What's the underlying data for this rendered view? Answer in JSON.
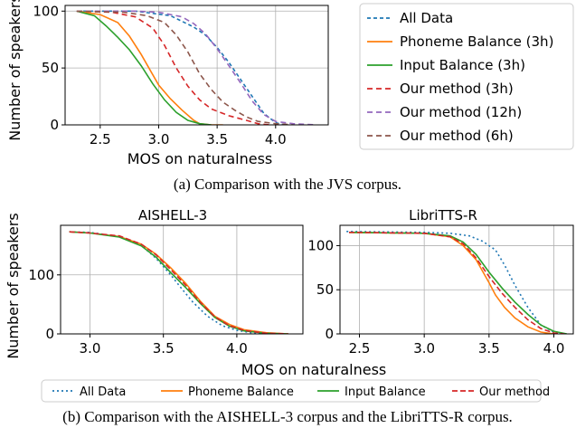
{
  "captions": {
    "a": "(a) Comparison with the JVS corpus.",
    "b": "(b) Comparison with the AISHELL-3 corpus and the LibriTTS-R corpus."
  },
  "colors": {
    "all_data": "#1f77b4",
    "phoneme_balance": "#ff7f0e",
    "input_balance": "#2ca02c",
    "our_3h": "#d62728",
    "our_12h": "#9467bd",
    "our_6h": "#8c564b"
  },
  "chart_data": [
    {
      "type": "line",
      "panel": "jvs",
      "title": "",
      "xlabel": "MOS on naturalness",
      "ylabel": "Number of speakers",
      "xlim": [
        2.2,
        4.45
      ],
      "ylim": [
        0,
        105
      ],
      "xticks": [
        2.5,
        3.0,
        3.5,
        4.0
      ],
      "yticks": [
        0,
        50,
        100
      ],
      "grid": true,
      "legend_placement": "right",
      "series": [
        {
          "name": "All Data",
          "color": "#1f77b4",
          "dash": "4,3",
          "x": [
            2.3,
            2.8,
            3.1,
            3.3,
            3.4,
            3.5,
            3.6,
            3.7,
            3.8,
            3.9,
            4.0,
            4.05,
            4.1
          ],
          "y": [
            100,
            100,
            96,
            86,
            79,
            68,
            55,
            40,
            25,
            10,
            2,
            0.5,
            0
          ]
        },
        {
          "name": "Phoneme Balance (3h)",
          "color": "#ff7f0e",
          "dash": "",
          "x": [
            2.3,
            2.5,
            2.65,
            2.75,
            2.85,
            2.95,
            3.0,
            3.1,
            3.2,
            3.3,
            3.35,
            3.45,
            3.55
          ],
          "y": [
            100,
            97,
            90,
            78,
            62,
            44,
            35,
            23,
            13,
            4,
            1,
            0,
            0
          ]
        },
        {
          "name": "Input Balance (3h)",
          "color": "#2ca02c",
          "dash": "",
          "x": [
            2.3,
            2.45,
            2.55,
            2.65,
            2.75,
            2.85,
            2.95,
            3.05,
            3.15,
            3.25,
            3.35,
            3.45
          ],
          "y": [
            100,
            96,
            87,
            77,
            66,
            52,
            36,
            22,
            11,
            4,
            1,
            0
          ]
        },
        {
          "name": "Our method (3h)",
          "color": "#d62728",
          "dash": "6,4",
          "x": [
            2.3,
            2.6,
            2.8,
            2.95,
            3.05,
            3.15,
            3.25,
            3.35,
            3.45,
            3.6,
            3.75,
            3.85,
            3.95
          ],
          "y": [
            100,
            99,
            95,
            85,
            70,
            50,
            34,
            22,
            14,
            8,
            4,
            1,
            0
          ]
        },
        {
          "name": "Our method (12h)",
          "color": "#9467bd",
          "dash": "6,4",
          "x": [
            2.3,
            2.8,
            3.0,
            3.2,
            3.3,
            3.4,
            3.5,
            3.6,
            3.7,
            3.8,
            3.9,
            4.0,
            4.15,
            4.35
          ],
          "y": [
            100,
            100,
            99,
            95,
            89,
            80,
            67,
            52,
            37,
            21,
            9,
            3,
            1,
            0
          ]
        },
        {
          "name": "Our method (6h)",
          "color": "#8c564b",
          "dash": "6,4",
          "x": [
            2.3,
            2.7,
            2.9,
            3.05,
            3.15,
            3.25,
            3.35,
            3.45,
            3.55,
            3.65,
            3.75,
            3.85,
            4.0,
            4.15
          ],
          "y": [
            100,
            99,
            96,
            90,
            79,
            64,
            45,
            31,
            20,
            13,
            7,
            3,
            1,
            0
          ]
        }
      ]
    },
    {
      "type": "line",
      "panel": "aishell",
      "title": "AISHELL-3",
      "xlabel": "MOS on naturalness",
      "ylabel": "Number of speakers",
      "xlim": [
        2.8,
        4.45
      ],
      "ylim": [
        0,
        184
      ],
      "xticks": [
        3.0,
        3.5,
        4.0
      ],
      "yticks": [
        0,
        100
      ],
      "grid": true,
      "series": [
        {
          "name": "All Data",
          "color": "#1f77b4",
          "dash": "2,3",
          "x": [
            2.86,
            3.0,
            3.2,
            3.35,
            3.45,
            3.55,
            3.62,
            3.7,
            3.8,
            3.9,
            4.0,
            4.1,
            4.3
          ],
          "y": [
            173,
            172,
            165,
            150,
            128,
            100,
            78,
            54,
            30,
            14,
            6,
            2,
            0
          ]
        },
        {
          "name": "Phoneme Balance",
          "color": "#ff7f0e",
          "dash": "",
          "x": [
            2.86,
            3.0,
            3.2,
            3.35,
            3.45,
            3.55,
            3.65,
            3.75,
            3.85,
            3.95,
            4.05,
            4.2,
            4.35
          ],
          "y": [
            173,
            171,
            165,
            152,
            135,
            112,
            86,
            56,
            30,
            16,
            7,
            2,
            0
          ]
        },
        {
          "name": "Input Balance",
          "color": "#2ca02c",
          "dash": "",
          "x": [
            2.86,
            3.0,
            3.2,
            3.35,
            3.45,
            3.55,
            3.65,
            3.75,
            3.85,
            3.95,
            4.05,
            4.2,
            4.35
          ],
          "y": [
            173,
            171,
            164,
            149,
            130,
            104,
            79,
            52,
            28,
            13,
            5,
            1,
            0
          ]
        },
        {
          "name": "Our method",
          "color": "#d62728",
          "dash": "6,3",
          "x": [
            2.86,
            3.0,
            3.2,
            3.35,
            3.45,
            3.55,
            3.65,
            3.75,
            3.85,
            3.95,
            4.05,
            4.2,
            4.35
          ],
          "y": [
            173,
            171,
            166,
            152,
            134,
            109,
            83,
            54,
            29,
            14,
            6,
            1,
            0
          ]
        }
      ]
    },
    {
      "type": "line",
      "panel": "libritts",
      "title": "LibriTTS-R",
      "xlabel": "MOS on naturalness",
      "ylabel": "",
      "xlim": [
        2.35,
        4.15
      ],
      "ylim": [
        0,
        123
      ],
      "xticks": [
        2.5,
        3.0,
        3.5,
        4.0
      ],
      "yticks": [
        0,
        50,
        100
      ],
      "grid": true,
      "series": [
        {
          "name": "All Data",
          "color": "#1f77b4",
          "dash": "2,3",
          "x": [
            2.4,
            3.0,
            3.2,
            3.35,
            3.45,
            3.55,
            3.62,
            3.7,
            3.8,
            3.9,
            4.0,
            4.05
          ],
          "y": [
            116,
            115,
            114,
            111,
            105,
            95,
            78,
            55,
            30,
            10,
            2,
            0
          ]
        },
        {
          "name": "Phoneme Balance",
          "color": "#ff7f0e",
          "dash": "",
          "x": [
            2.42,
            3.0,
            3.2,
            3.3,
            3.4,
            3.5,
            3.55,
            3.62,
            3.7,
            3.8,
            3.9,
            4.0
          ],
          "y": [
            115,
            114,
            110,
            100,
            84,
            58,
            44,
            30,
            18,
            8,
            2,
            0
          ]
        },
        {
          "name": "Input Balance",
          "color": "#2ca02c",
          "dash": "",
          "x": [
            2.42,
            3.0,
            3.2,
            3.3,
            3.4,
            3.5,
            3.6,
            3.7,
            3.8,
            3.9,
            4.0,
            4.1
          ],
          "y": [
            115,
            114,
            111,
            104,
            90,
            70,
            52,
            36,
            22,
            10,
            3,
            0
          ]
        },
        {
          "name": "Our method",
          "color": "#d62728",
          "dash": "6,3",
          "x": [
            2.42,
            3.0,
            3.2,
            3.3,
            3.4,
            3.5,
            3.6,
            3.7,
            3.8,
            3.9,
            4.0,
            4.08
          ],
          "y": [
            115,
            114,
            110,
            102,
            86,
            65,
            46,
            30,
            16,
            6,
            1,
            0
          ]
        }
      ]
    }
  ]
}
